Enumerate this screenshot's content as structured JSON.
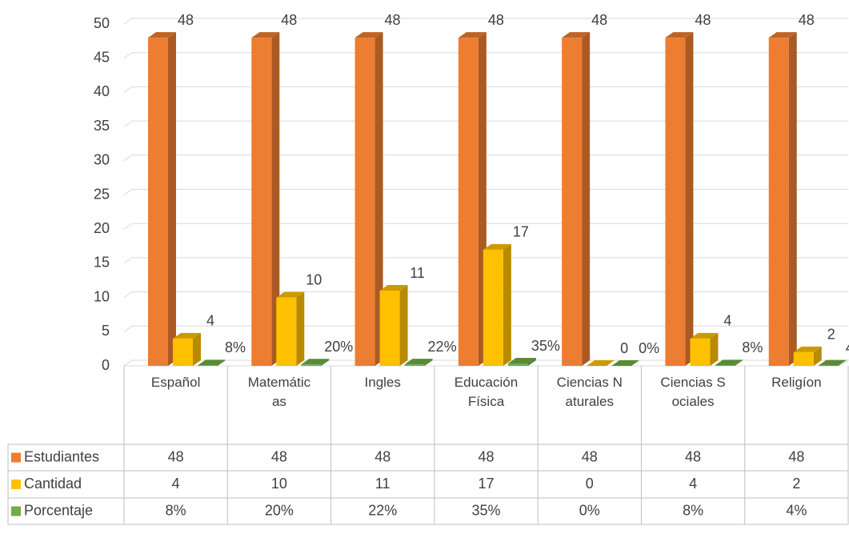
{
  "chart_data": {
    "type": "bar3d",
    "categories": [
      "Español",
      "Matemáticas",
      "Ingles",
      "Educación Física",
      "Ciencias Naturales",
      "Ciencias Sociales",
      "Religíon"
    ],
    "series": [
      {
        "name": "Estudiantes",
        "color": "#ED7D31",
        "values": [
          48,
          48,
          48,
          48,
          48,
          48,
          48
        ]
      },
      {
        "name": "Cantidad",
        "color": "#FFC000",
        "values": [
          4,
          10,
          11,
          17,
          0,
          4,
          2
        ]
      },
      {
        "name": "Porcentaje",
        "color": "#70AD47",
        "values": [
          0.08,
          0.2,
          0.22,
          0.35,
          0,
          0.08,
          0.04
        ],
        "value_labels": [
          "8%",
          "20%",
          "22%",
          "35%",
          "0%",
          "8%",
          "4%"
        ]
      }
    ],
    "ylim": [
      0,
      50
    ],
    "yticks": [
      0,
      5,
      10,
      15,
      20,
      25,
      30,
      35,
      40,
      45,
      50
    ],
    "grid": true,
    "data_table": true
  }
}
